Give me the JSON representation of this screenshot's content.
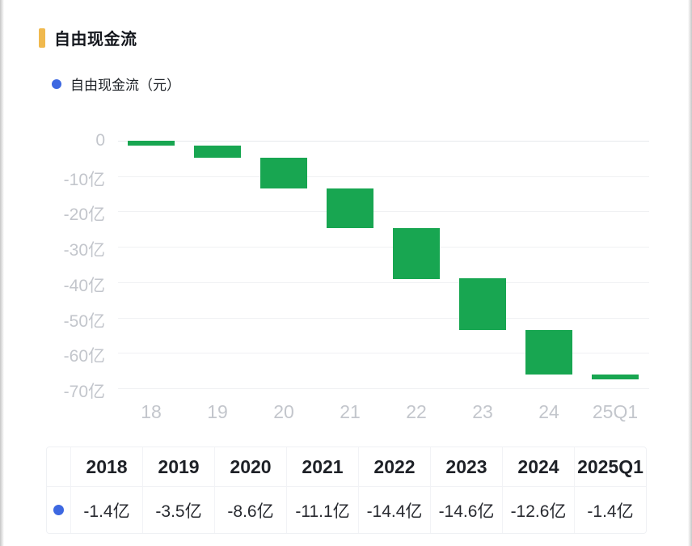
{
  "header": {
    "title": "自由现金流",
    "accent_color": "#f0b94e"
  },
  "legend": {
    "label": "自由现金流（元）",
    "dot_color": "#3d68e1"
  },
  "chart_data": {
    "type": "bar",
    "subtype": "waterfall",
    "title": "自由现金流",
    "series_name": "自由现金流（元）",
    "unit": "亿",
    "categories": [
      "18",
      "19",
      "20",
      "21",
      "22",
      "23",
      "24",
      "25Q1"
    ],
    "values": [
      -1.4,
      -3.5,
      -8.6,
      -11.1,
      -14.4,
      -14.6,
      -12.6,
      -1.4
    ],
    "cumulative_start": [
      0,
      -1.4,
      -4.9,
      -13.5,
      -24.6,
      -39.0,
      -53.6,
      -66.2
    ],
    "cumulative_end": [
      -1.4,
      -4.9,
      -13.5,
      -24.6,
      -39.0,
      -53.6,
      -66.2,
      -67.6
    ],
    "y_ticks": [
      {
        "value": 0,
        "label": "0"
      },
      {
        "value": -10,
        "label": "-10亿"
      },
      {
        "value": -20,
        "label": "-20亿"
      },
      {
        "value": -30,
        "label": "-30亿"
      },
      {
        "value": -40,
        "label": "-40亿"
      },
      {
        "value": -50,
        "label": "-50亿"
      },
      {
        "value": -60,
        "label": "-60亿"
      },
      {
        "value": -70,
        "label": "-70亿"
      }
    ],
    "ylim": [
      -75,
      0
    ],
    "grid": true,
    "legend_position": "top-left",
    "bar_color": "#18a651",
    "axis_label_color": "#c3c6cc"
  },
  "table": {
    "headers": [
      "",
      "2018",
      "2019",
      "2020",
      "2021",
      "2022",
      "2023",
      "2024",
      "2025Q1"
    ],
    "row": {
      "dot_color": "#3d68e1",
      "values": [
        "-1.4亿",
        "-3.5亿",
        "-8.6亿",
        "-11.1亿",
        "-14.4亿",
        "-14.6亿",
        "-12.6亿",
        "-1.4亿"
      ]
    }
  }
}
